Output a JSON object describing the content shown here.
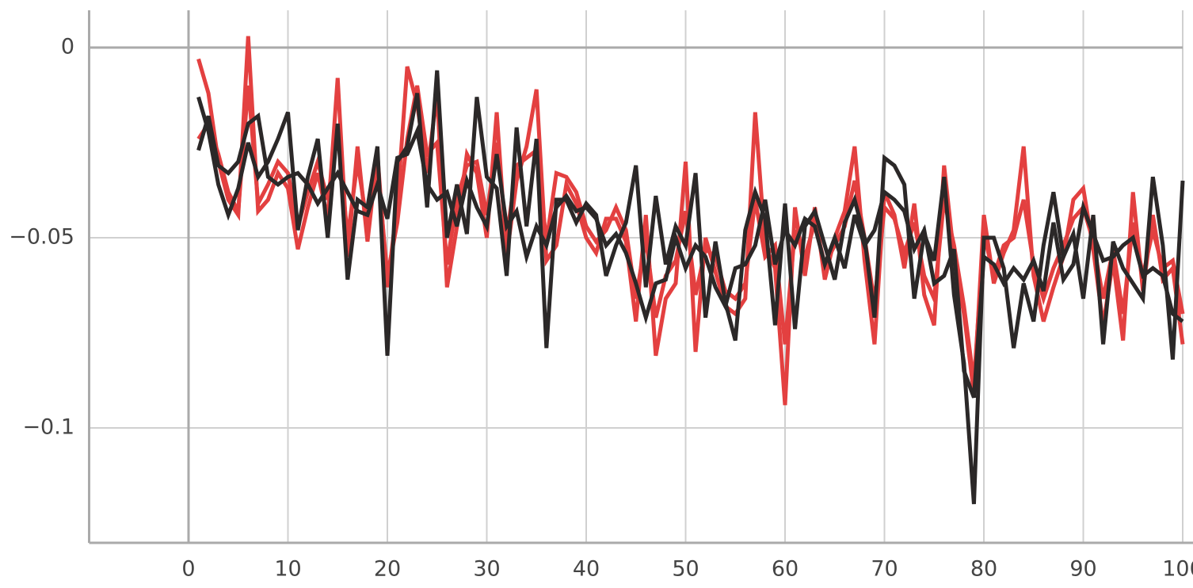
{
  "chart_data": {
    "type": "line",
    "x": [
      1,
      2,
      3,
      4,
      5,
      6,
      7,
      8,
      9,
      10,
      11,
      12,
      13,
      14,
      15,
      16,
      17,
      18,
      19,
      20,
      21,
      22,
      23,
      24,
      25,
      26,
      27,
      28,
      29,
      30,
      31,
      32,
      33,
      34,
      35,
      36,
      37,
      38,
      39,
      40,
      41,
      42,
      43,
      44,
      45,
      46,
      47,
      48,
      49,
      50,
      51,
      52,
      53,
      54,
      55,
      56,
      57,
      58,
      59,
      60,
      61,
      62,
      63,
      64,
      65,
      66,
      67,
      68,
      69,
      70,
      71,
      72,
      73,
      74,
      75,
      76,
      77,
      78,
      79,
      80,
      81,
      82,
      83,
      84,
      85,
      86,
      87,
      88,
      89,
      90,
      91,
      92,
      93,
      94,
      95,
      96,
      97,
      98,
      99,
      100
    ],
    "series": [
      {
        "color": "#e34040",
        "values": [
          -0.003,
          -0.012,
          -0.03,
          -0.04,
          -0.044,
          0.003,
          -0.043,
          -0.04,
          -0.033,
          -0.037,
          -0.053,
          -0.042,
          -0.033,
          -0.045,
          -0.008,
          -0.055,
          -0.026,
          -0.051,
          -0.028,
          -0.063,
          -0.041,
          -0.005,
          -0.015,
          -0.033,
          -0.012,
          -0.063,
          -0.047,
          -0.028,
          -0.033,
          -0.05,
          -0.017,
          -0.055,
          -0.035,
          -0.026,
          -0.011,
          -0.056,
          -0.052,
          -0.036,
          -0.041,
          -0.05,
          -0.054,
          -0.045,
          -0.045,
          -0.051,
          -0.072,
          -0.044,
          -0.081,
          -0.066,
          -0.062,
          -0.03,
          -0.08,
          -0.05,
          -0.059,
          -0.068,
          -0.07,
          -0.066,
          -0.017,
          -0.052,
          -0.058,
          -0.094,
          -0.042,
          -0.06,
          -0.042,
          -0.061,
          -0.05,
          -0.043,
          -0.026,
          -0.056,
          -0.078,
          -0.038,
          -0.044,
          -0.058,
          -0.041,
          -0.065,
          -0.073,
          -0.031,
          -0.055,
          -0.07,
          -0.091,
          -0.044,
          -0.062,
          -0.054,
          -0.048,
          -0.026,
          -0.06,
          -0.072,
          -0.063,
          -0.055,
          -0.04,
          -0.037,
          -0.053,
          -0.073,
          -0.056,
          -0.077,
          -0.038,
          -0.064,
          -0.044,
          -0.061,
          -0.058,
          -0.078
        ]
      },
      {
        "color": "#e34040",
        "values": [
          -0.024,
          -0.02,
          -0.028,
          -0.038,
          -0.043,
          -0.01,
          -0.041,
          -0.036,
          -0.03,
          -0.033,
          -0.047,
          -0.038,
          -0.03,
          -0.04,
          -0.022,
          -0.05,
          -0.03,
          -0.047,
          -0.031,
          -0.06,
          -0.046,
          -0.024,
          -0.01,
          -0.028,
          -0.025,
          -0.057,
          -0.04,
          -0.031,
          -0.03,
          -0.044,
          -0.025,
          -0.05,
          -0.031,
          -0.029,
          -0.027,
          -0.051,
          -0.033,
          -0.034,
          -0.038,
          -0.047,
          -0.051,
          -0.048,
          -0.042,
          -0.048,
          -0.066,
          -0.05,
          -0.071,
          -0.06,
          -0.056,
          -0.043,
          -0.065,
          -0.053,
          -0.055,
          -0.064,
          -0.066,
          -0.062,
          -0.04,
          -0.055,
          -0.052,
          -0.078,
          -0.048,
          -0.055,
          -0.046,
          -0.057,
          -0.052,
          -0.047,
          -0.035,
          -0.05,
          -0.067,
          -0.042,
          -0.045,
          -0.054,
          -0.046,
          -0.06,
          -0.066,
          -0.04,
          -0.052,
          -0.068,
          -0.088,
          -0.049,
          -0.06,
          -0.052,
          -0.05,
          -0.04,
          -0.057,
          -0.066,
          -0.058,
          -0.052,
          -0.045,
          -0.042,
          -0.051,
          -0.066,
          -0.053,
          -0.07,
          -0.046,
          -0.06,
          -0.048,
          -0.058,
          -0.056,
          -0.07
        ]
      },
      {
        "color": "#2b2828",
        "values": [
          -0.027,
          -0.018,
          -0.031,
          -0.033,
          -0.03,
          -0.02,
          -0.018,
          -0.034,
          -0.036,
          -0.034,
          -0.033,
          -0.036,
          -0.041,
          -0.037,
          -0.033,
          -0.038,
          -0.043,
          -0.044,
          -0.036,
          -0.045,
          -0.029,
          -0.028,
          -0.022,
          -0.036,
          -0.04,
          -0.038,
          -0.047,
          -0.035,
          -0.042,
          -0.047,
          -0.028,
          -0.047,
          -0.043,
          -0.055,
          -0.047,
          -0.052,
          -0.042,
          -0.039,
          -0.043,
          -0.042,
          -0.045,
          -0.052,
          -0.049,
          -0.054,
          -0.062,
          -0.071,
          -0.062,
          -0.061,
          -0.05,
          -0.058,
          -0.052,
          -0.055,
          -0.063,
          -0.068,
          -0.058,
          -0.057,
          -0.052,
          -0.04,
          -0.057,
          -0.048,
          -0.052,
          -0.045,
          -0.047,
          -0.057,
          -0.05,
          -0.058,
          -0.044,
          -0.052,
          -0.048,
          -0.038,
          -0.04,
          -0.043,
          -0.053,
          -0.048,
          -0.062,
          -0.06,
          -0.053,
          -0.085,
          -0.092,
          -0.055,
          -0.057,
          -0.062,
          -0.058,
          -0.061,
          -0.056,
          -0.064,
          -0.046,
          -0.061,
          -0.057,
          -0.042,
          -0.049,
          -0.056,
          -0.055,
          -0.052,
          -0.05,
          -0.06,
          -0.058,
          -0.06,
          -0.07,
          -0.072
        ]
      },
      {
        "color": "#2b2828",
        "values": [
          -0.013,
          -0.022,
          -0.036,
          -0.044,
          -0.037,
          -0.025,
          -0.034,
          -0.03,
          -0.024,
          -0.017,
          -0.048,
          -0.034,
          -0.024,
          -0.05,
          -0.02,
          -0.061,
          -0.04,
          -0.042,
          -0.026,
          -0.081,
          -0.03,
          -0.026,
          -0.012,
          -0.042,
          -0.006,
          -0.05,
          -0.036,
          -0.049,
          -0.013,
          -0.034,
          -0.037,
          -0.06,
          -0.021,
          -0.047,
          -0.024,
          -0.079,
          -0.04,
          -0.04,
          -0.046,
          -0.041,
          -0.044,
          -0.06,
          -0.052,
          -0.046,
          -0.031,
          -0.063,
          -0.039,
          -0.057,
          -0.047,
          -0.052,
          -0.033,
          -0.071,
          -0.051,
          -0.067,
          -0.077,
          -0.048,
          -0.038,
          -0.045,
          -0.073,
          -0.041,
          -0.074,
          -0.047,
          -0.043,
          -0.052,
          -0.061,
          -0.046,
          -0.04,
          -0.05,
          -0.071,
          -0.029,
          -0.031,
          -0.036,
          -0.066,
          -0.049,
          -0.056,
          -0.034,
          -0.065,
          -0.083,
          -0.12,
          -0.05,
          -0.05,
          -0.058,
          -0.079,
          -0.062,
          -0.072,
          -0.052,
          -0.038,
          -0.055,
          -0.049,
          -0.066,
          -0.044,
          -0.078,
          -0.051,
          -0.058,
          -0.062,
          -0.066,
          -0.034,
          -0.052,
          -0.082,
          -0.035
        ]
      }
    ],
    "xlim": [
      -10,
      100
    ],
    "xticks": [
      0,
      10,
      20,
      30,
      40,
      50,
      60,
      70,
      80,
      90,
      100
    ],
    "ylim": [
      -0.1302,
      0.0098
    ],
    "yticks": [
      {
        "value": -0.1,
        "label": "−0.1"
      },
      {
        "value": -0.05,
        "label": "−0.05"
      },
      0
    ],
    "grid": true
  }
}
